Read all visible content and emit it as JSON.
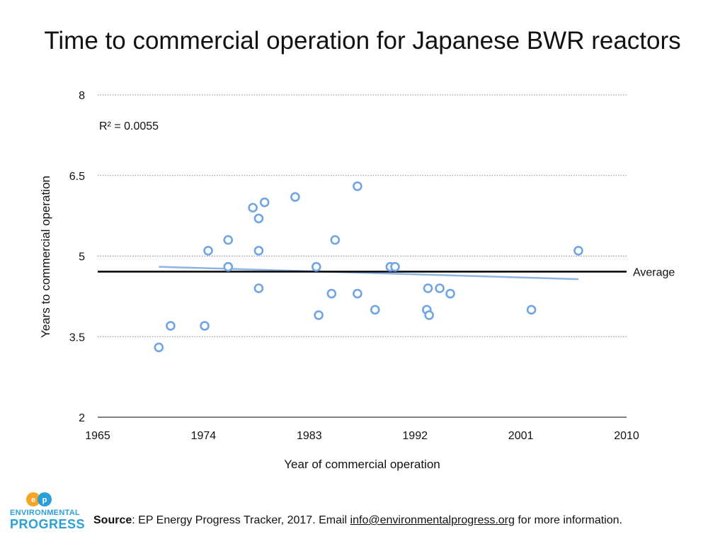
{
  "chart_data": {
    "type": "scatter",
    "title": "Time to commercial operation for Japanese BWR reactors",
    "xlabel": "Year of commercial operation",
    "ylabel": "Years to commercial operation",
    "xlim": [
      1965,
      2010
    ],
    "ylim": [
      2,
      8
    ],
    "xticks": [
      "1965",
      "1974",
      "1983",
      "1992",
      "2001",
      "2010"
    ],
    "yticks": [
      "2",
      "3.5",
      "5",
      "6.5",
      "8"
    ],
    "grid": "horizontal dotted",
    "points": [
      {
        "x": 1970.2,
        "y": 3.3
      },
      {
        "x": 1971.2,
        "y": 3.7
      },
      {
        "x": 1974.1,
        "y": 3.7
      },
      {
        "x": 1974.4,
        "y": 5.1
      },
      {
        "x": 1976.1,
        "y": 5.3
      },
      {
        "x": 1976.1,
        "y": 4.8
      },
      {
        "x": 1978.2,
        "y": 5.9
      },
      {
        "x": 1978.7,
        "y": 5.7
      },
      {
        "x": 1978.7,
        "y": 5.1
      },
      {
        "x": 1978.7,
        "y": 4.4
      },
      {
        "x": 1979.2,
        "y": 6.0
      },
      {
        "x": 1981.8,
        "y": 6.1
      },
      {
        "x": 1983.6,
        "y": 4.8
      },
      {
        "x": 1983.8,
        "y": 3.9
      },
      {
        "x": 1984.9,
        "y": 4.3
      },
      {
        "x": 1985.2,
        "y": 5.3
      },
      {
        "x": 1987.1,
        "y": 6.3
      },
      {
        "x": 1987.1,
        "y": 4.3
      },
      {
        "x": 1988.6,
        "y": 4.0
      },
      {
        "x": 1989.9,
        "y": 4.8
      },
      {
        "x": 1990.3,
        "y": 4.8
      },
      {
        "x": 1993.0,
        "y": 4.0
      },
      {
        "x": 1993.1,
        "y": 4.4
      },
      {
        "x": 1993.2,
        "y": 3.9
      },
      {
        "x": 1994.1,
        "y": 4.4
      },
      {
        "x": 1995.0,
        "y": 4.3
      },
      {
        "x": 2001.9,
        "y": 4.0
      },
      {
        "x": 2005.9,
        "y": 5.1
      }
    ],
    "trendline": {
      "x": [
        1970.2,
        2005.9
      ],
      "y": [
        4.8,
        4.57
      ],
      "r2_label": "R² = 0.0055"
    },
    "average": {
      "y": 4.71,
      "label": "Average"
    },
    "colors": {
      "points": "#6fa5e6",
      "trend": "#8fb3e3",
      "average": "#000000",
      "grid": "#888888"
    }
  },
  "footer": {
    "source_label": "Source",
    "source_text": ": EP Energy Progress Tracker, 2017. Email ",
    "email": "info@environmentalprogress.org",
    "tail": " for more information."
  },
  "logo": {
    "mark": "EP",
    "line1": "ENVIRONMENTAL",
    "line2": "PROGRESS",
    "colors": {
      "orange": "#f5a623",
      "blue": "#2a9fd8"
    }
  }
}
